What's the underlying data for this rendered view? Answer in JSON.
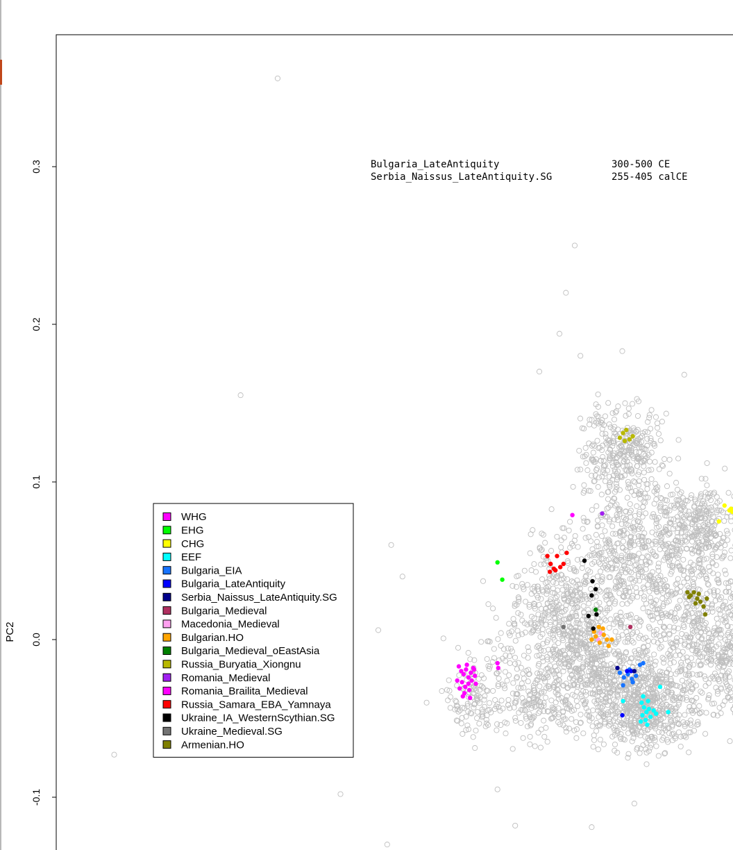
{
  "chart_data": {
    "type": "scatter",
    "xlabel": "",
    "ylabel": "PC2",
    "ylim": [
      -0.133,
      0.38
    ],
    "y_ticks": [
      -0.1,
      0.0,
      0.1,
      0.2,
      0.3
    ],
    "y_tick_labels": [
      "-0.1",
      "0.0",
      "0.1",
      "0.2",
      "0.3"
    ],
    "xlim": [
      0.0,
      1.0
    ],
    "annotations": [
      {
        "population": "Bulgaria_LateAntiquity",
        "date": "300-500 CE"
      },
      {
        "population": "Serbia_Naissus_LateAntiquity.SG",
        "date": "255-405 calCE"
      }
    ],
    "legend_placement": "center-left",
    "background_points_color": "#bebebe",
    "series": [
      {
        "name": "WHG",
        "color": "#ff00ff",
        "points": [
          [
            0.5,
            -0.017
          ],
          [
            0.503,
            -0.02
          ],
          [
            0.506,
            -0.022
          ],
          [
            0.509,
            -0.019
          ],
          [
            0.512,
            -0.024
          ],
          [
            0.515,
            -0.021
          ],
          [
            0.518,
            -0.018
          ],
          [
            0.504,
            -0.027
          ],
          [
            0.508,
            -0.03
          ],
          [
            0.512,
            -0.028
          ],
          [
            0.516,
            -0.026
          ],
          [
            0.52,
            -0.023
          ],
          [
            0.498,
            -0.026
          ],
          [
            0.501,
            -0.031
          ],
          [
            0.507,
            -0.034
          ],
          [
            0.513,
            -0.032
          ],
          [
            0.519,
            -0.019
          ],
          [
            0.51,
            -0.016
          ],
          [
            0.514,
            -0.037
          ],
          [
            0.505,
            -0.036
          ],
          [
            0.521,
            -0.028
          ]
        ]
      },
      {
        "name": "EHG",
        "color": "#00ff00",
        "points": [
          [
            0.548,
            0.049
          ],
          [
            0.554,
            0.038
          ]
        ]
      },
      {
        "name": "CHG",
        "color": "#ffff00",
        "points": [
          [
            0.83,
            0.085
          ],
          [
            0.836,
            0.082
          ],
          [
            0.84,
            0.081
          ],
          [
            0.847,
            0.078
          ],
          [
            0.852,
            0.09
          ],
          [
            0.856,
            0.096
          ],
          [
            0.858,
            0.092
          ],
          [
            0.823,
            0.075
          ],
          [
            0.838,
            0.083
          ]
        ]
      },
      {
        "name": "EEF",
        "color": "#00ffff",
        "points": [
          [
            0.727,
            -0.04
          ],
          [
            0.73,
            -0.043
          ],
          [
            0.733,
            -0.046
          ],
          [
            0.736,
            -0.044
          ],
          [
            0.728,
            -0.048
          ],
          [
            0.732,
            -0.051
          ],
          [
            0.735,
            -0.039
          ],
          [
            0.738,
            -0.049
          ],
          [
            0.742,
            -0.045
          ],
          [
            0.726,
            -0.052
          ],
          [
            0.745,
            -0.047
          ],
          [
            0.75,
            -0.03
          ],
          [
            0.76,
            -0.046
          ],
          [
            0.704,
            -0.039
          ],
          [
            0.734,
            -0.054
          ],
          [
            0.729,
            -0.036
          ]
        ]
      },
      {
        "name": "Bulgaria_EIA",
        "color": "#1874ff",
        "points": [
          [
            0.7,
            -0.021
          ],
          [
            0.705,
            -0.024
          ],
          [
            0.71,
            -0.022
          ],
          [
            0.715,
            -0.025
          ],
          [
            0.72,
            -0.023
          ],
          [
            0.712,
            -0.019
          ],
          [
            0.725,
            -0.016
          ],
          [
            0.729,
            -0.015
          ],
          [
            0.704,
            -0.029
          ],
          [
            0.716,
            -0.027
          ]
        ]
      },
      {
        "name": "Bulgaria_LateAntiquity",
        "color": "#0000ff",
        "points": [
          [
            0.709,
            -0.02
          ],
          [
            0.714,
            -0.02
          ],
          [
            0.703,
            -0.048
          ]
        ]
      },
      {
        "name": "Serbia_Naissus_LateAntiquity.SG",
        "color": "#00008b",
        "points": [
          [
            0.697,
            -0.018
          ],
          [
            0.718,
            -0.02
          ]
        ]
      },
      {
        "name": "Bulgaria_Medieval",
        "color": "#b03060",
        "points": [
          [
            0.713,
            0.008
          ]
        ]
      },
      {
        "name": "Macedonia_Medieval",
        "color": "#ffa0f0",
        "points": [
          [
            0.673,
            0.0
          ],
          [
            0.676,
            0.004
          ]
        ]
      },
      {
        "name": "Bulgarian.HO",
        "color": "#ffa500",
        "points": [
          [
            0.665,
            0.0
          ],
          [
            0.67,
            0.002
          ],
          [
            0.675,
            -0.002
          ],
          [
            0.68,
            0.003
          ],
          [
            0.684,
            0.0
          ],
          [
            0.679,
            0.007
          ],
          [
            0.674,
            0.008
          ],
          [
            0.69,
            0.0
          ],
          [
            0.686,
            -0.004
          ],
          [
            0.668,
            0.005
          ]
        ]
      },
      {
        "name": "Bulgaria_Medieval_oEastAsia",
        "color": "#008000",
        "points": [
          [
            0.67,
            0.019
          ]
        ]
      },
      {
        "name": "Russia_Buryatia_Xiongnu",
        "color": "#b8b800",
        "points": [
          [
            0.7,
            0.128
          ],
          [
            0.704,
            0.131
          ],
          [
            0.708,
            0.133
          ],
          [
            0.712,
            0.127
          ],
          [
            0.716,
            0.129
          ],
          [
            0.706,
            0.126
          ]
        ]
      },
      {
        "name": "Romania_Medieval",
        "color": "#a020f0",
        "points": [
          [
            0.678,
            0.08
          ]
        ]
      },
      {
        "name": "Romania_Brailita_Medieval",
        "color": "#ff00ff",
        "points": [
          [
            0.641,
            0.079
          ],
          [
            0.548,
            -0.015
          ],
          [
            0.549,
            -0.018
          ]
        ]
      },
      {
        "name": "Russia_Samara_EBA_Yamnaya",
        "color": "#ff0000",
        "points": [
          [
            0.61,
            0.053
          ],
          [
            0.614,
            0.048
          ],
          [
            0.618,
            0.045
          ],
          [
            0.622,
            0.053
          ],
          [
            0.626,
            0.046
          ],
          [
            0.63,
            0.048
          ],
          [
            0.634,
            0.055
          ],
          [
            0.613,
            0.043
          ],
          [
            0.62,
            0.044
          ]
        ]
      },
      {
        "name": "Ukraine_IA_WesternScythian.SG",
        "color": "#000000",
        "points": [
          [
            0.666,
            0.037
          ],
          [
            0.67,
            0.032
          ],
          [
            0.665,
            0.028
          ],
          [
            0.671,
            0.016
          ],
          [
            0.656,
            0.05
          ],
          [
            0.661,
            0.015
          ],
          [
            0.667,
            0.007
          ]
        ]
      },
      {
        "name": "Ukraine_Medieval.SG",
        "color": "#737373",
        "points": [
          [
            0.63,
            0.008
          ]
        ]
      },
      {
        "name": "Armenian.HO",
        "color": "#808000",
        "points": [
          [
            0.784,
            0.03
          ],
          [
            0.788,
            0.028
          ],
          [
            0.792,
            0.03
          ],
          [
            0.796,
            0.026
          ],
          [
            0.794,
            0.023
          ],
          [
            0.8,
            0.024
          ],
          [
            0.804,
            0.021
          ],
          [
            0.808,
            0.026
          ],
          [
            0.806,
            0.016
          ],
          [
            0.786,
            0.027
          ],
          [
            0.798,
            0.029
          ]
        ]
      }
    ]
  }
}
